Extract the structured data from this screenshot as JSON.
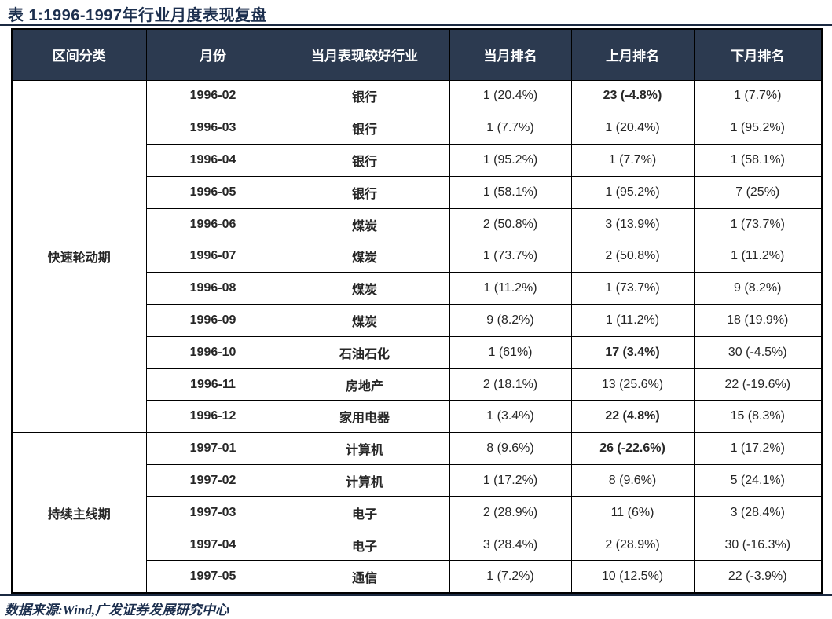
{
  "page": {
    "title": "表 1:1996-1997年行业月度表现复盘",
    "footer_source": "数据来源:Wind,广发证券发展研究中心"
  },
  "colors": {
    "header_bg": "#2C3A50",
    "title_navy": "#1C2F4E",
    "highlight_green": "#00B050",
    "border": "#000000"
  },
  "table": {
    "columns": [
      "区间分类",
      "月份",
      "当月表现较好行业",
      "当月排名",
      "上月排名",
      "下月排名"
    ],
    "groups": [
      {
        "label": "快速轮动期",
        "span": 11
      },
      {
        "label": "持续主线期",
        "span": 5
      }
    ],
    "rows": [
      {
        "month": "1996-02",
        "industry": "银行",
        "current": "1 (20.4%)",
        "prev": "23 (-4.8%)",
        "prev_highlight": true,
        "next": "1 (7.7%)"
      },
      {
        "month": "1996-03",
        "industry": "银行",
        "current": "1 (7.7%)",
        "prev": "1 (20.4%)",
        "prev_highlight": false,
        "next": "1 (95.2%)"
      },
      {
        "month": "1996-04",
        "industry": "银行",
        "current": "1 (95.2%)",
        "prev": "1 (7.7%)",
        "prev_highlight": false,
        "next": "1 (58.1%)"
      },
      {
        "month": "1996-05",
        "industry": "银行",
        "current": "1 (58.1%)",
        "prev": "1 (95.2%)",
        "prev_highlight": false,
        "next": "7 (25%)"
      },
      {
        "month": "1996-06",
        "industry": "煤炭",
        "current": "2 (50.8%)",
        "prev": "3 (13.9%)",
        "prev_highlight": false,
        "next": "1 (73.7%)"
      },
      {
        "month": "1996-07",
        "industry": "煤炭",
        "current": "1 (73.7%)",
        "prev": "2 (50.8%)",
        "prev_highlight": false,
        "next": "1 (11.2%)"
      },
      {
        "month": "1996-08",
        "industry": "煤炭",
        "current": "1 (11.2%)",
        "prev": "1 (73.7%)",
        "prev_highlight": false,
        "next": "9 (8.2%)"
      },
      {
        "month": "1996-09",
        "industry": "煤炭",
        "current": "9 (8.2%)",
        "prev": "1 (11.2%)",
        "prev_highlight": false,
        "next": "18 (19.9%)"
      },
      {
        "month": "1996-10",
        "industry": "石油石化",
        "current": "1 (61%)",
        "prev": "17 (3.4%)",
        "prev_highlight": true,
        "next": "30 (-4.5%)"
      },
      {
        "month": "1996-11",
        "industry": "房地产",
        "current": "2 (18.1%)",
        "prev": "13 (25.6%)",
        "prev_highlight": false,
        "next": "22 (-19.6%)"
      },
      {
        "month": "1996-12",
        "industry": "家用电器",
        "current": "1 (3.4%)",
        "prev": "22 (4.8%)",
        "prev_highlight": true,
        "next": "15 (8.3%)"
      },
      {
        "month": "1997-01",
        "industry": "计算机",
        "current": "8 (9.6%)",
        "prev": "26 (-22.6%)",
        "prev_highlight": true,
        "next": "1 (17.2%)"
      },
      {
        "month": "1997-02",
        "industry": "计算机",
        "current": "1 (17.2%)",
        "prev": "8 (9.6%)",
        "prev_highlight": false,
        "next": "5 (24.1%)"
      },
      {
        "month": "1997-03",
        "industry": "电子",
        "current": "2 (28.9%)",
        "prev": "11 (6%)",
        "prev_highlight": false,
        "next": "3 (28.4%)"
      },
      {
        "month": "1997-04",
        "industry": "电子",
        "current": "3 (28.4%)",
        "prev": "2 (28.9%)",
        "prev_highlight": false,
        "next": "30 (-16.3%)"
      },
      {
        "month": "1997-05",
        "industry": "通信",
        "current": "1 (7.2%)",
        "prev": "10 (12.5%)",
        "prev_highlight": false,
        "next": "22 (-3.9%)"
      }
    ]
  }
}
